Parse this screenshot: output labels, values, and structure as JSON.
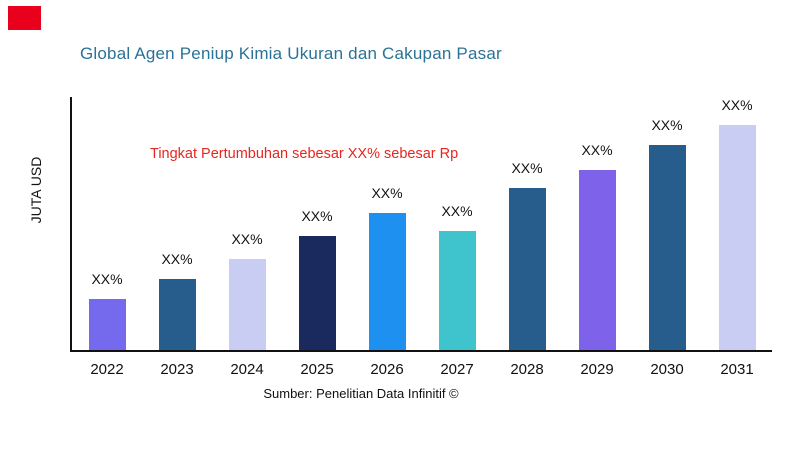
{
  "header": {
    "title": "Global Agen Peniup Kimia Ukuran dan Cakupan Pasar",
    "title_color": "#2a7396"
  },
  "branding": {
    "logo_color": "#e8001c"
  },
  "annotation": {
    "text": "Tingkat Pertumbuhan sebesar XX% sebesar Rp",
    "color": "#e8251f"
  },
  "axes": {
    "ylabel": "JUTA USD"
  },
  "footer": {
    "source": "Sumber: Penelitian Data Infinitif ©"
  },
  "chart_data": {
    "type": "bar",
    "title": "Global Agen Peniup Kimia Ukuran dan Cakupan Pasar",
    "categories": [
      "2022",
      "2023",
      "2024",
      "2025",
      "2026",
      "2027",
      "2028",
      "2029",
      "2030",
      "2031"
    ],
    "values": [
      20,
      28,
      36,
      45,
      54,
      47,
      64,
      71,
      81,
      90
    ],
    "value_labels": [
      "XX%",
      "XX%",
      "XX%",
      "XX%",
      "XX%",
      "XX%",
      "XX%",
      "XX%",
      "XX%",
      "XX%"
    ],
    "bar_colors": [
      "#7569ee",
      "#265d8d",
      "#c9cdf4",
      "#1b2a5e",
      "#1e90f0",
      "#3fc4cd",
      "#265d8d",
      "#7e62ea",
      "#265d8d",
      "#c9cdf4"
    ],
    "xlabel": "",
    "ylabel": "JUTA USD",
    "ylim": [
      0,
      100
    ],
    "grid": false,
    "legend": false,
    "annotation": "Tingkat Pertumbuhan sebesar XX% sebesar Rp"
  }
}
